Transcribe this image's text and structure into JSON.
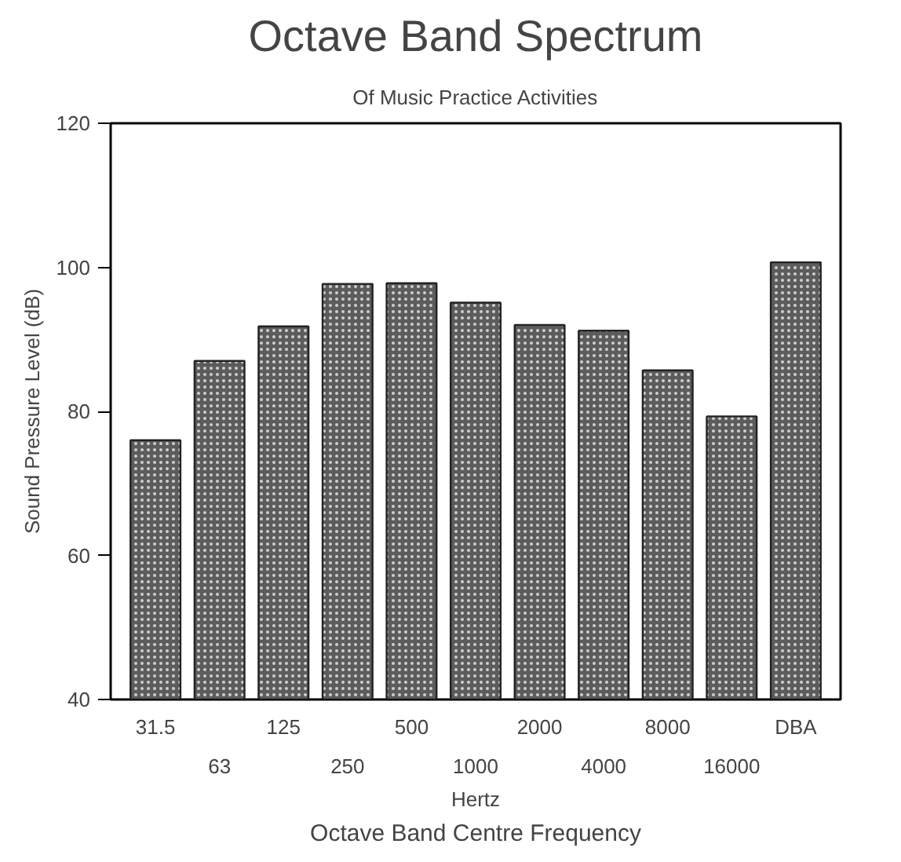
{
  "chart_data": {
    "type": "bar",
    "title": "Octave Band Spectrum",
    "subtitle": "Of Music Practice Activities",
    "categories": [
      "31.5",
      "63",
      "125",
      "250",
      "500",
      "1000",
      "2000",
      "4000",
      "8000",
      "16000",
      "DBA"
    ],
    "values": [
      76,
      87,
      91.8,
      97.7,
      97.8,
      95.1,
      92,
      91.2,
      85.7,
      79.3,
      100.7
    ],
    "color": "#5c5c5c",
    "ylabel": "Sound Pressure Level (dB)",
    "xlabel": "Hertz",
    "annotations": [
      "Octave Band Centre Frequency"
    ],
    "ylim": [
      40,
      120
    ],
    "yticks": [
      40,
      60,
      80,
      100,
      120
    ],
    "grid": false
  }
}
